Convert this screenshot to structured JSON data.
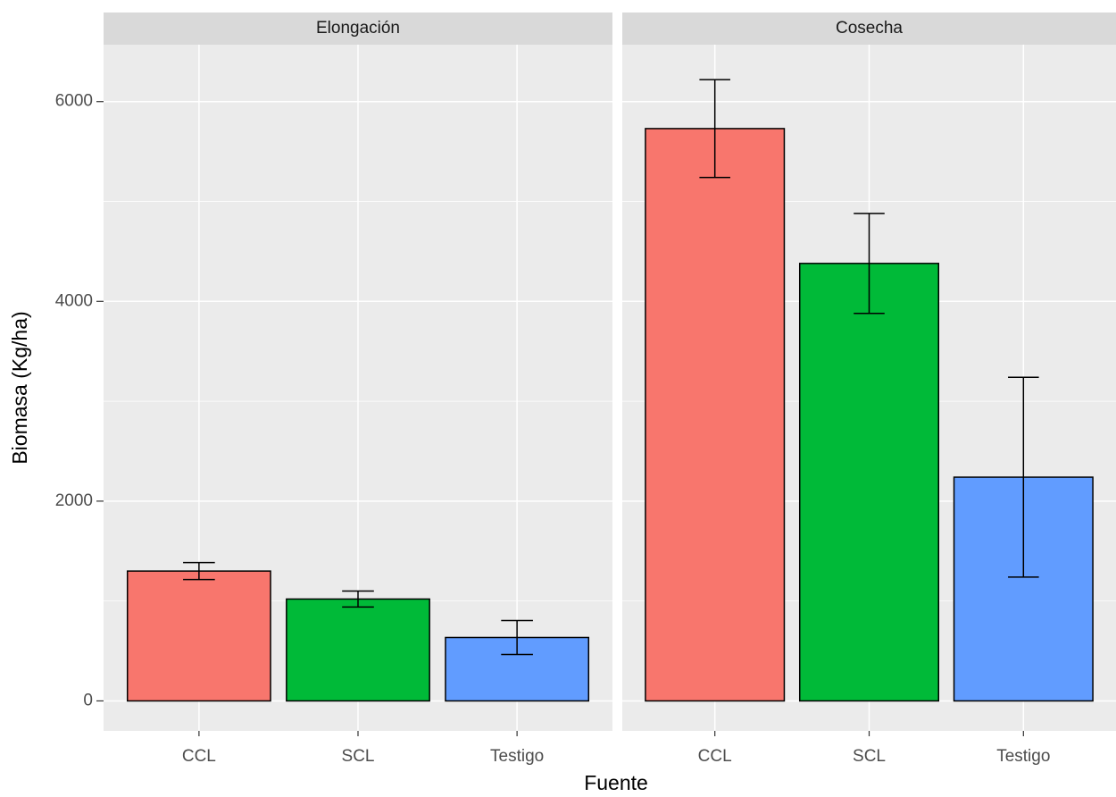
{
  "chart_data": {
    "type": "bar",
    "x_label": "Fuente",
    "y_label": "Biomasa (Kg/ha)",
    "ylim": [
      -300,
      6570
    ],
    "yticks": [
      0,
      2000,
      4000,
      6000
    ],
    "y_minor_ticks": [
      1000,
      3000,
      5000
    ],
    "grid": true,
    "colors": [
      "#F8766D",
      "#00BA38",
      "#619CFF"
    ],
    "facets": [
      {
        "title": "Elongación",
        "categories": [
          "CCL",
          "SCL",
          "Testigo"
        ],
        "values": [
          1300,
          1020,
          635
        ],
        "errors": [
          85,
          80,
          170
        ]
      },
      {
        "title": "Cosecha",
        "categories": [
          "CCL",
          "SCL",
          "Testigo"
        ],
        "values": [
          5730,
          4380,
          2240
        ],
        "errors": [
          490,
          500,
          1000
        ]
      }
    ]
  }
}
